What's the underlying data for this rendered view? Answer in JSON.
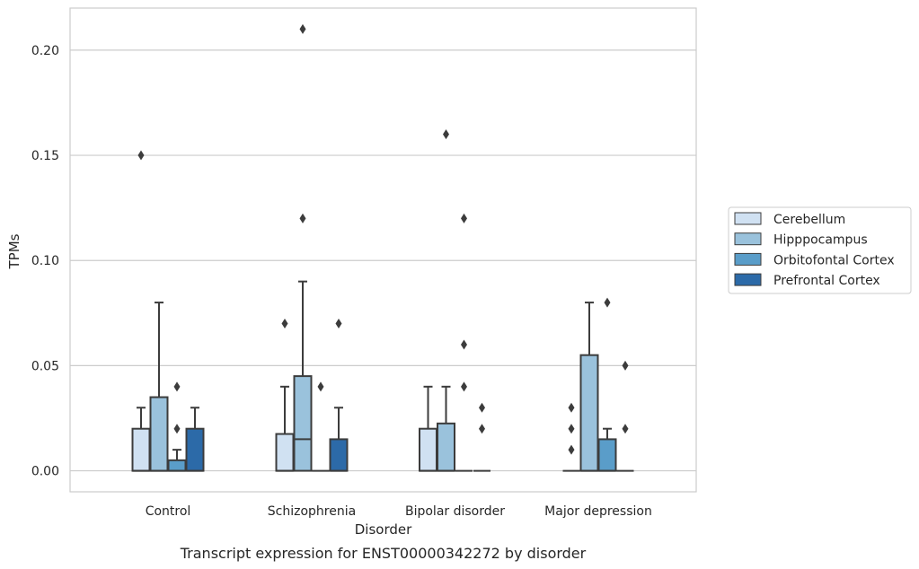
{
  "chart_data": {
    "type": "box",
    "title": "",
    "caption": "Transcript expression for ENST00000342272 by disorder",
    "xlabel": "Disorder",
    "ylabel": "TPMs",
    "ylim": [
      -0.01,
      0.22
    ],
    "yticks": [
      0.0,
      0.05,
      0.1,
      0.15,
      0.2
    ],
    "ytick_labels": [
      "0.00",
      "0.05",
      "0.10",
      "0.15",
      "0.20"
    ],
    "categories": [
      "Control",
      "Schizophrenia",
      "Bipolar disorder",
      "Major depression"
    ],
    "grid": "horizontal",
    "legend_position": "right",
    "series": [
      {
        "name": "Cerebellum",
        "color": "#d0e1f2",
        "boxes": [
          {
            "category": "Control",
            "whisker_low": 0.0,
            "q1": 0.0,
            "median": 0.0,
            "q3": 0.02,
            "whisker_high": 0.03,
            "outliers": [
              0.15
            ]
          },
          {
            "category": "Schizophrenia",
            "whisker_low": 0.0,
            "q1": 0.0,
            "median": 0.0,
            "q3": 0.0175,
            "whisker_high": 0.04,
            "outliers": [
              0.07
            ]
          },
          {
            "category": "Bipolar disorder",
            "whisker_low": 0.0,
            "q1": 0.0,
            "median": 0.0,
            "q3": 0.02,
            "whisker_high": 0.04,
            "outliers": []
          },
          {
            "category": "Major depression",
            "whisker_low": 0.0,
            "q1": 0.0,
            "median": 0.0,
            "q3": 0.0,
            "whisker_high": 0.0,
            "outliers": [
              0.01,
              0.02,
              0.03
            ]
          }
        ]
      },
      {
        "name": "Hipppocampus",
        "color": "#9ac2dc",
        "boxes": [
          {
            "category": "Control",
            "whisker_low": 0.0,
            "q1": 0.0,
            "median": 0.0,
            "q3": 0.035,
            "whisker_high": 0.08,
            "outliers": []
          },
          {
            "category": "Schizophrenia",
            "whisker_low": 0.0,
            "q1": 0.0,
            "median": 0.015,
            "q3": 0.045,
            "whisker_high": 0.09,
            "outliers": [
              0.12,
              0.21
            ]
          },
          {
            "category": "Bipolar disorder",
            "whisker_low": 0.0,
            "q1": 0.0,
            "median": 0.0,
            "q3": 0.0225,
            "whisker_high": 0.04,
            "outliers": [
              0.16
            ]
          },
          {
            "category": "Major depression",
            "whisker_low": 0.0,
            "q1": 0.0,
            "median": 0.0,
            "q3": 0.055,
            "whisker_high": 0.08,
            "outliers": []
          }
        ]
      },
      {
        "name": "Orbitofontal Cortex",
        "color": "#5a9dc9",
        "boxes": [
          {
            "category": "Control",
            "whisker_low": 0.0,
            "q1": 0.0,
            "median": 0.0,
            "q3": 0.005,
            "whisker_high": 0.01,
            "outliers": [
              0.02,
              0.04
            ]
          },
          {
            "category": "Schizophrenia",
            "whisker_low": 0.0,
            "q1": 0.0,
            "median": 0.0,
            "q3": 0.0,
            "whisker_high": 0.0,
            "outliers": [
              0.04
            ]
          },
          {
            "category": "Bipolar disorder",
            "whisker_low": 0.0,
            "q1": 0.0,
            "median": 0.0,
            "q3": 0.0,
            "whisker_high": 0.0,
            "outliers": [
              0.04,
              0.06,
              0.12
            ]
          },
          {
            "category": "Major depression",
            "whisker_low": 0.0,
            "q1": 0.0,
            "median": 0.0,
            "q3": 0.015,
            "whisker_high": 0.02,
            "outliers": [
              0.08
            ]
          }
        ]
      },
      {
        "name": "Prefrontal Cortex",
        "color": "#2c6aa8",
        "boxes": [
          {
            "category": "Control",
            "whisker_low": 0.0,
            "q1": 0.0,
            "median": 0.0,
            "q3": 0.02,
            "whisker_high": 0.03,
            "outliers": []
          },
          {
            "category": "Schizophrenia",
            "whisker_low": 0.0,
            "q1": 0.0,
            "median": 0.0,
            "q3": 0.015,
            "whisker_high": 0.03,
            "outliers": [
              0.07
            ]
          },
          {
            "category": "Bipolar disorder",
            "whisker_low": 0.0,
            "q1": 0.0,
            "median": 0.0,
            "q3": 0.0,
            "whisker_high": 0.0,
            "outliers": [
              0.02,
              0.03
            ]
          },
          {
            "category": "Major depression",
            "whisker_low": 0.0,
            "q1": 0.0,
            "median": 0.0,
            "q3": 0.0,
            "whisker_high": 0.0,
            "outliers": [
              0.02,
              0.05
            ]
          }
        ]
      }
    ]
  }
}
